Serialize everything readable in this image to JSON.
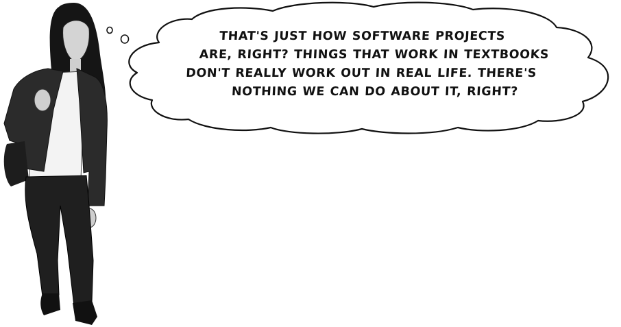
{
  "thought_bubble": {
    "lines": [
      "THAT'S JUST HOW SOFTWARE PROJECTS",
      "ARE, RIGHT? THINGS THAT WORK IN TEXTBOOKS",
      "DON'T REALLY WORK OUT IN REAL LIFE. THERE'S",
      "NOTHING WE CAN DO ABOUT IT, RIGHT?"
    ]
  },
  "colors": {
    "background": "#ffffff",
    "outline": "#111111",
    "jacket": "#2b2b2b",
    "jeans": "#1f1f1f",
    "shirt": "#f3f3f3",
    "skin": "#cfcfcf",
    "hair": "#151515"
  },
  "figure": {
    "depicts": "woman-in-denim-jacket"
  }
}
